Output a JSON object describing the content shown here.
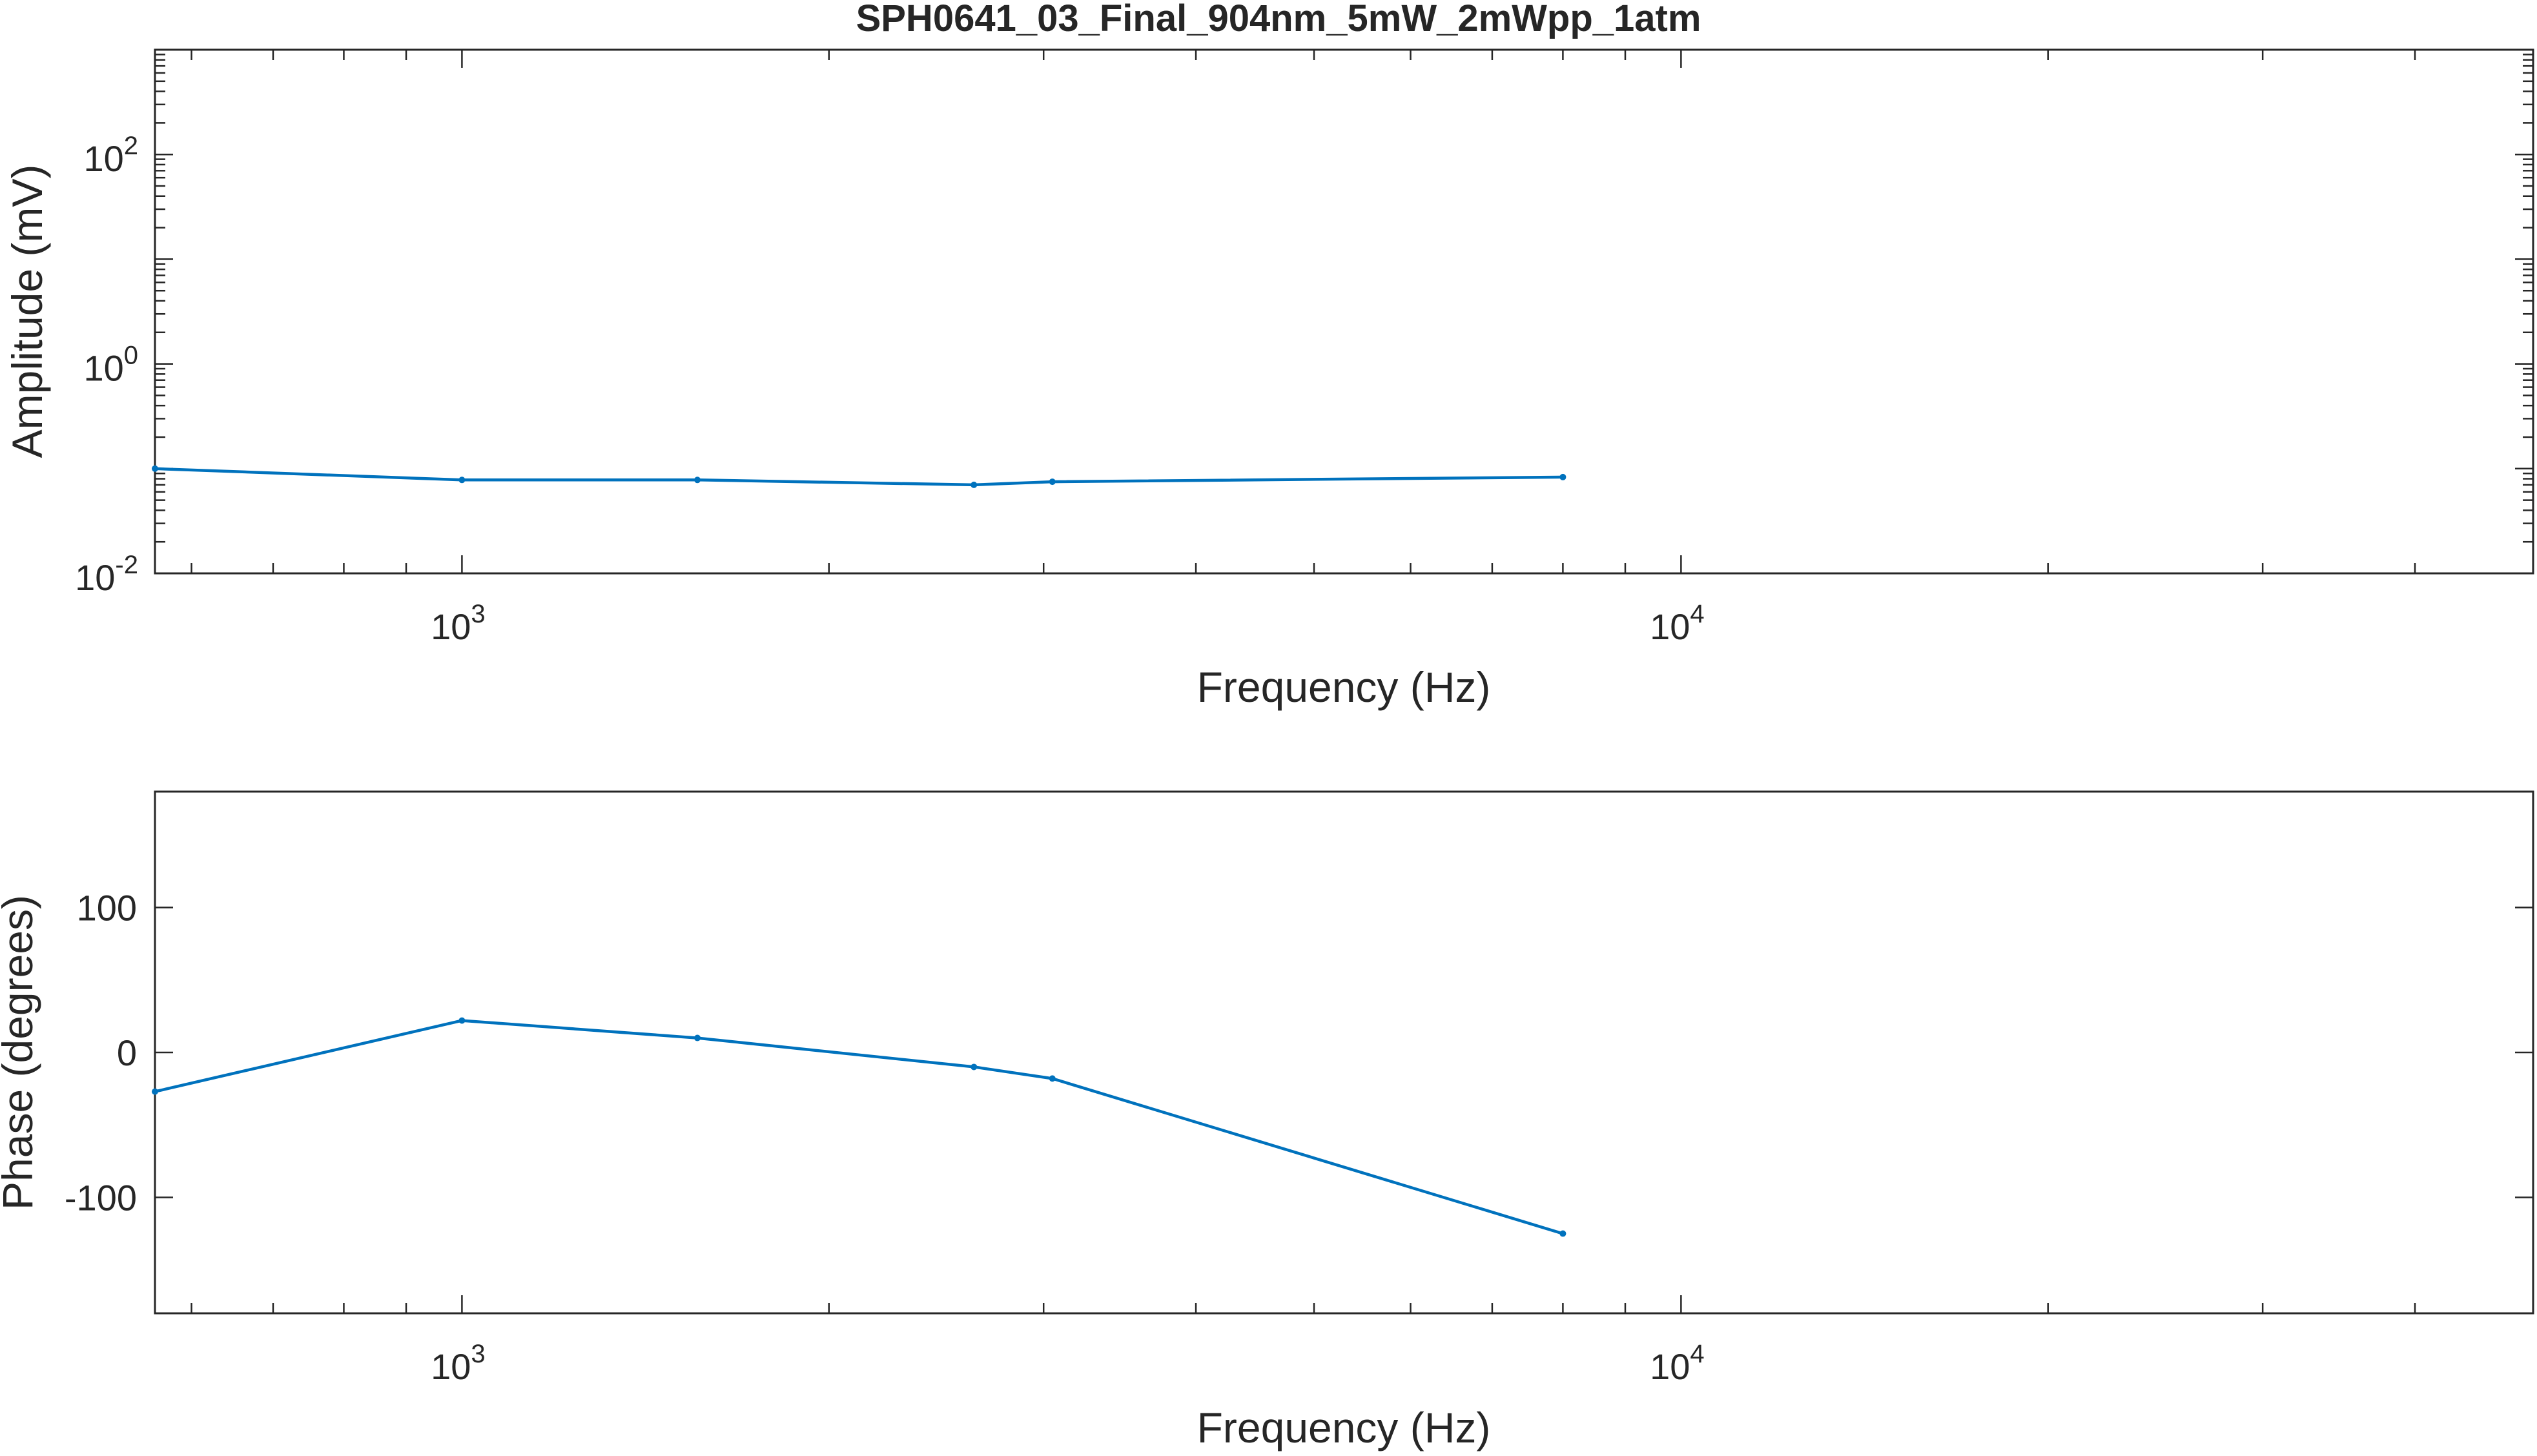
{
  "figure_title": "SPH0641_03_Final_904nm_5mW_2mWpp_1atm",
  "chart_data": [
    {
      "type": "line",
      "xlabel": "Frequency (Hz)",
      "ylabel": "Amplitude (mV)",
      "xscale": "log",
      "yscale": "log",
      "xlim": [
        560,
        50000
      ],
      "ylim": [
        0.01,
        1000
      ],
      "xticks": [
        {
          "value": 1000,
          "base": "10",
          "exp": "3"
        },
        {
          "value": 10000,
          "base": "10",
          "exp": "4"
        }
      ],
      "yticks": [
        {
          "value": 0.01,
          "base": "10",
          "exp": "-2"
        },
        {
          "value": 1,
          "base": "10",
          "exp": "0"
        },
        {
          "value": 100,
          "base": "10",
          "exp": "2"
        }
      ],
      "grid": false,
      "line_color": "#0072BD",
      "series": [
        {
          "x": [
            560,
            1000,
            1560,
            2630,
            3050,
            8000
          ],
          "y": [
            0.1,
            0.078,
            0.078,
            0.07,
            0.075,
            0.083
          ]
        }
      ]
    },
    {
      "type": "line",
      "xlabel": "Frequency (Hz)",
      "ylabel": "Phase (degrees)",
      "xscale": "log",
      "yscale": "linear",
      "xlim": [
        560,
        50000
      ],
      "ylim": [
        -180,
        180
      ],
      "xticks": [
        {
          "value": 1000,
          "base": "10",
          "exp": "3"
        },
        {
          "value": 10000,
          "base": "10",
          "exp": "4"
        }
      ],
      "yticks": [
        {
          "value": -100,
          "label": "-100"
        },
        {
          "value": 0,
          "label": "0"
        },
        {
          "value": 100,
          "label": "100"
        }
      ],
      "grid": false,
      "line_color": "#0072BD",
      "series": [
        {
          "x": [
            560,
            1000,
            1560,
            2630,
            3050,
            8000
          ],
          "y": [
            -27,
            22,
            10,
            -10,
            -18,
            -125
          ]
        }
      ]
    }
  ]
}
